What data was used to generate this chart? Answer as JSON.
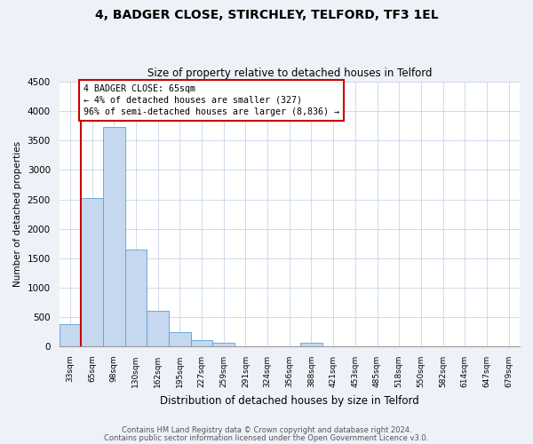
{
  "title": "4, BADGER CLOSE, STIRCHLEY, TELFORD, TF3 1EL",
  "subtitle": "Size of property relative to detached houses in Telford",
  "xlabel": "Distribution of detached houses by size in Telford",
  "ylabel": "Number of detached properties",
  "bin_labels": [
    "33sqm",
    "65sqm",
    "98sqm",
    "130sqm",
    "162sqm",
    "195sqm",
    "227sqm",
    "259sqm",
    "291sqm",
    "324sqm",
    "356sqm",
    "388sqm",
    "421sqm",
    "453sqm",
    "485sqm",
    "518sqm",
    "550sqm",
    "582sqm",
    "614sqm",
    "647sqm",
    "679sqm"
  ],
  "bar_values": [
    380,
    2520,
    3730,
    1640,
    600,
    240,
    100,
    60,
    0,
    0,
    0,
    55,
    0,
    0,
    0,
    0,
    0,
    0,
    0,
    0,
    0
  ],
  "bar_color": "#c5d8f0",
  "bar_edge_color": "#5a9fd4",
  "highlight_bar_index": 1,
  "highlight_color": "#cc0000",
  "annotation_title": "4 BADGER CLOSE: 65sqm",
  "annotation_line1": "← 4% of detached houses are smaller (327)",
  "annotation_line2": "96% of semi-detached houses are larger (8,836) →",
  "annotation_box_color": "#cc0000",
  "ylim": [
    0,
    4500
  ],
  "yticks": [
    0,
    500,
    1000,
    1500,
    2000,
    2500,
    3000,
    3500,
    4000,
    4500
  ],
  "footnote1": "Contains HM Land Registry data © Crown copyright and database right 2024.",
  "footnote2": "Contains public sector information licensed under the Open Government Licence v3.0.",
  "background_color": "#eef2f8",
  "plot_background": "#ffffff"
}
